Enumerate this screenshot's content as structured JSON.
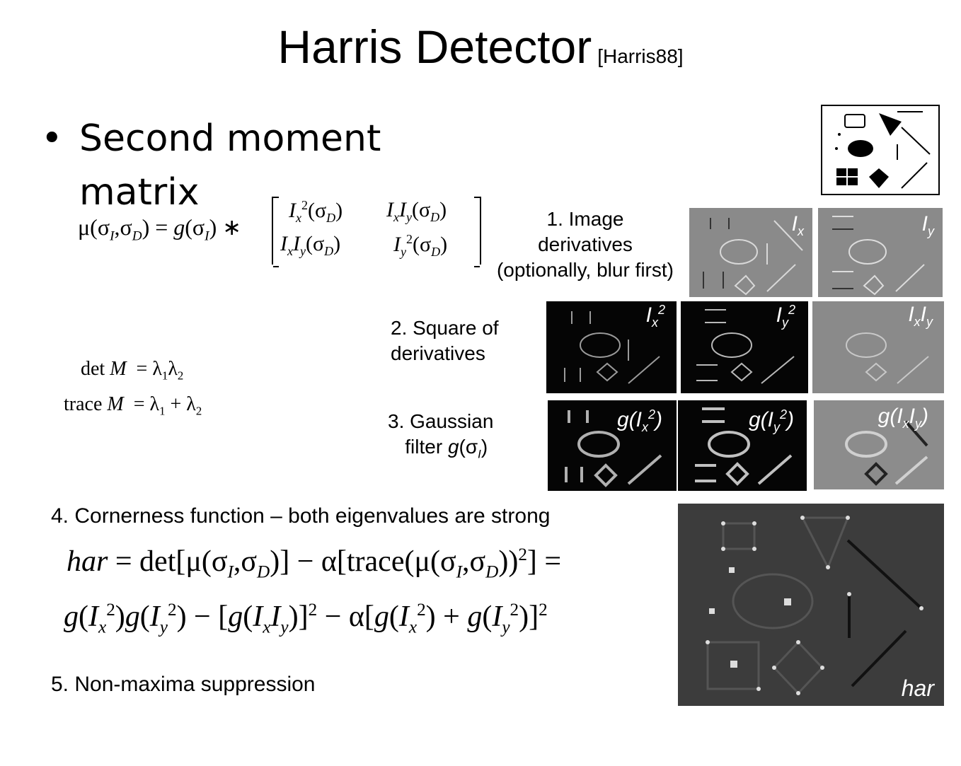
{
  "title": {
    "main": "Harris Detector",
    "citation": "[Harris88]"
  },
  "bullet": {
    "symbol": "•",
    "line1": "Second moment",
    "line2": "matrix"
  },
  "matrix_eq": {
    "lhs": "μ(σI,σD) = g(σI) ∗",
    "a11": "Ix²(σD)",
    "a12": "IxIy(σD)",
    "a21": "IxIy(σD)",
    "a22": "Iy²(σD)"
  },
  "eigen": {
    "det": "det M = λ1λ2",
    "trace": "trace M = λ1 + λ2"
  },
  "steps": {
    "step1": [
      "1. Image",
      "derivatives",
      "(optionally, blur first)"
    ],
    "step2": [
      "2. Square of",
      "derivatives"
    ],
    "step3": [
      "3. Gaussian",
      "filter g(σI)"
    ],
    "step4": "4. Cornerness function – both eigenvalues are strong",
    "step5": "5. Non-maxima suppression"
  },
  "formula": {
    "line1": "har = det[μ(σI,σD)] − α[trace(μ(σI,σD))²] =",
    "line2": "g(Ix²)g(Iy²) − [g(IxIy)]² − α[g(Ix²) + g(Iy²)]²"
  },
  "image_labels": {
    "ix": "Ix",
    "iy": "Iy",
    "ix2": "Ix2",
    "iy2": "Iy2",
    "ixiy": "IxIy",
    "gix2": "g(Ix2)",
    "giy2": "g(Iy2)",
    "gixiy": "g(IxIy)",
    "har": "har"
  }
}
